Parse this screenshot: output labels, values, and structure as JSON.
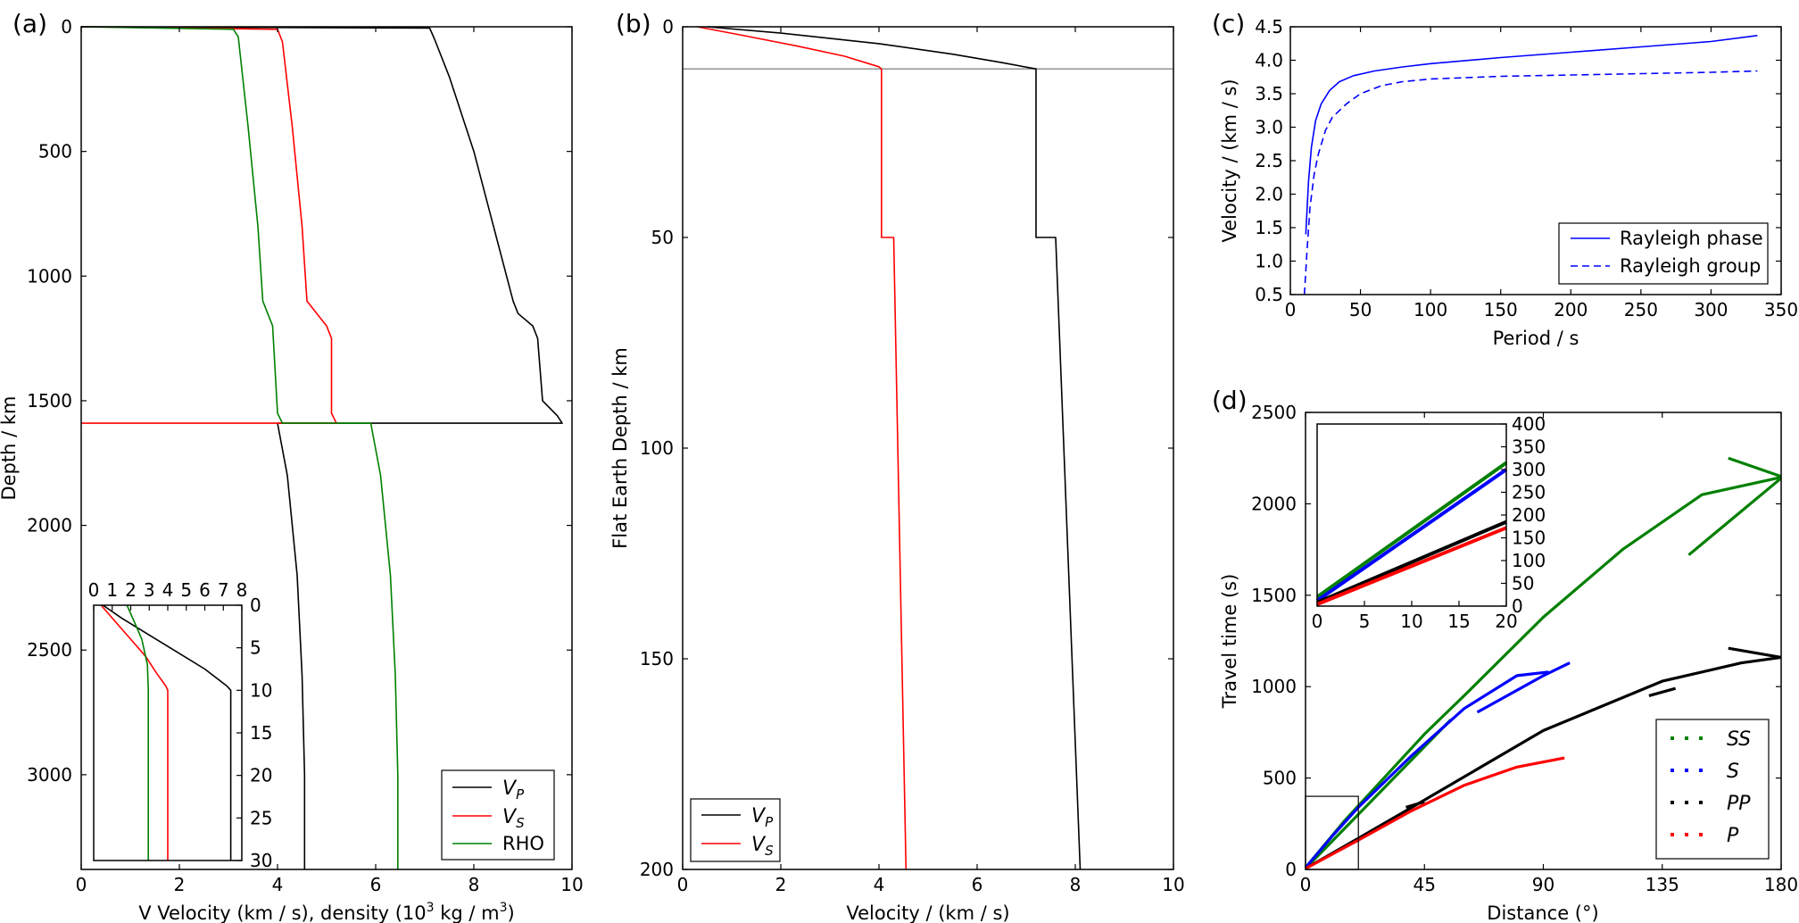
{
  "chart_data": [
    {
      "panel": "(a)",
      "type": "line",
      "xlabel_main": "V  Velocity (km / s),  density (10",
      "xlabel_sup": "3",
      "xlabel_end": " kg / m",
      "xlabel_sup2": "3",
      "xlabel_close": ")",
      "ylabel": "Depth / km",
      "xlim": [
        0,
        10
      ],
      "ylim": [
        3380,
        0
      ],
      "y_inverted": true,
      "xticks": [
        "0",
        "2",
        "4",
        "6",
        "8",
        "10"
      ],
      "yticks": [
        "0",
        "500",
        "1000",
        "1500",
        "2000",
        "2500",
        "3000"
      ],
      "legend_position": "lower-right",
      "series": [
        {
          "name_main": "V",
          "name_sub": "P",
          "color": "#000000",
          "points": [
            [
              0,
              0
            ],
            [
              7.1,
              5
            ],
            [
              7.2,
              50
            ],
            [
              7.5,
              200
            ],
            [
              8.0,
              500
            ],
            [
              8.4,
              800
            ],
            [
              8.8,
              1100
            ],
            [
              8.9,
              1150
            ],
            [
              9.2,
              1200
            ],
            [
              9.3,
              1250
            ],
            [
              9.4,
              1500
            ],
            [
              9.7,
              1560
            ],
            [
              9.8,
              1590
            ],
            [
              4.0,
              1590
            ],
            [
              4.2,
              1800
            ],
            [
              4.4,
              2200
            ],
            [
              4.5,
              2600
            ],
            [
              4.55,
              3000
            ],
            [
              4.55,
              3380
            ]
          ]
        },
        {
          "name_main": "V",
          "name_sub": "S",
          "color": "#ff0000",
          "points": [
            [
              0,
              0
            ],
            [
              4.0,
              10
            ],
            [
              4.1,
              60
            ],
            [
              4.3,
              400
            ],
            [
              4.5,
              800
            ],
            [
              4.6,
              1100
            ],
            [
              4.8,
              1150
            ],
            [
              5.0,
              1200
            ],
            [
              5.1,
              1250
            ],
            [
              5.1,
              1550
            ],
            [
              5.2,
              1590
            ],
            [
              0,
              1590
            ]
          ]
        },
        {
          "name": "RHO",
          "color": "#008000",
          "points": [
            [
              0,
              0
            ],
            [
              3.1,
              10
            ],
            [
              3.2,
              40
            ],
            [
              3.4,
              400
            ],
            [
              3.6,
              800
            ],
            [
              3.7,
              1100
            ],
            [
              3.8,
              1150
            ],
            [
              3.9,
              1200
            ],
            [
              4.0,
              1550
            ],
            [
              4.1,
              1590
            ],
            [
              5.9,
              1590
            ],
            [
              6.1,
              1800
            ],
            [
              6.3,
              2200
            ],
            [
              6.4,
              2600
            ],
            [
              6.45,
              3000
            ],
            [
              6.45,
              3380
            ]
          ]
        }
      ],
      "inset": {
        "xlim": [
          0,
          8
        ],
        "ylim": [
          30,
          0
        ],
        "xticks": [
          "0",
          "1",
          "2",
          "3",
          "4",
          "5",
          "6",
          "7",
          "8"
        ],
        "yticks": [
          "0",
          "5",
          "10",
          "15",
          "20",
          "25",
          "30"
        ],
        "series": [
          {
            "name": "VP",
            "color": "#000000",
            "points": [
              [
                0.5,
                0
              ],
              [
                1.5,
                1.5
              ],
              [
                3.0,
                3.5
              ],
              [
                4.5,
                5.5
              ],
              [
                6.0,
                7.5
              ],
              [
                7.2,
                9.5
              ],
              [
                7.4,
                10
              ],
              [
                7.4,
                30
              ]
            ]
          },
          {
            "name": "VS",
            "color": "#ff0000",
            "points": [
              [
                0.4,
                0
              ],
              [
                1.2,
                2
              ],
              [
                2.0,
                4
              ],
              [
                2.8,
                6
              ],
              [
                3.4,
                8
              ],
              [
                3.9,
                9.5
              ],
              [
                4.0,
                10
              ],
              [
                4.0,
                30
              ]
            ]
          },
          {
            "name": "RHO",
            "color": "#008000",
            "points": [
              [
                1.8,
                0
              ],
              [
                2.2,
                2
              ],
              [
                2.6,
                4
              ],
              [
                2.8,
                6
              ],
              [
                2.9,
                7
              ],
              [
                2.95,
                10
              ],
              [
                2.95,
                30
              ]
            ]
          }
        ]
      }
    },
    {
      "panel": "(b)",
      "type": "line",
      "xlabel": "Velocity / (km / s)",
      "ylabel": "Flat Earth Depth / km",
      "xlim": [
        0,
        10
      ],
      "ylim": [
        200,
        0
      ],
      "y_inverted": true,
      "xticks": [
        "0",
        "2",
        "4",
        "6",
        "8",
        "10"
      ],
      "yticks": [
        "0",
        "50",
        "100",
        "150",
        "200"
      ],
      "hline": 10,
      "legend_position": "lower-left",
      "series": [
        {
          "name_main": "V",
          "name_sub": "P",
          "color": "#000000",
          "points": [
            [
              0.5,
              0
            ],
            [
              2.0,
              1.5
            ],
            [
              4.0,
              4
            ],
            [
              5.5,
              6.5
            ],
            [
              6.5,
              8.5
            ],
            [
              7.2,
              10
            ],
            [
              7.2,
              50
            ],
            [
              7.6,
              50
            ],
            [
              8.1,
              200
            ]
          ]
        },
        {
          "name_main": "V",
          "name_sub": "S",
          "color": "#ff0000",
          "points": [
            [
              0.3,
              0
            ],
            [
              1.2,
              2
            ],
            [
              2.3,
              4.5
            ],
            [
              3.3,
              7
            ],
            [
              4.0,
              9.5
            ],
            [
              4.05,
              10
            ],
            [
              4.05,
              50
            ],
            [
              4.3,
              50
            ],
            [
              4.55,
              200
            ]
          ]
        }
      ]
    },
    {
      "panel": "(c)",
      "type": "line",
      "xlabel": "Period / s",
      "ylabel": "Velocity / (km / s)",
      "xlim": [
        0,
        350
      ],
      "ylim": [
        0.5,
        4.5
      ],
      "xticks": [
        "0",
        "50",
        "100",
        "150",
        "200",
        "250",
        "300",
        "350"
      ],
      "yticks": [
        "0.5",
        "1.0",
        "1.5",
        "2.0",
        "2.5",
        "3.0",
        "3.5",
        "4.0",
        "4.5"
      ],
      "legend_position": "lower-right",
      "series": [
        {
          "name": "Rayleigh phase",
          "color": "#0000ff",
          "dash": "solid",
          "points": [
            [
              11,
              1.4
            ],
            [
              13,
              2.2
            ],
            [
              15,
              2.7
            ],
            [
              18,
              3.1
            ],
            [
              22,
              3.35
            ],
            [
              28,
              3.55
            ],
            [
              35,
              3.68
            ],
            [
              45,
              3.77
            ],
            [
              60,
              3.84
            ],
            [
              80,
              3.9
            ],
            [
              100,
              3.95
            ],
            [
              150,
              4.04
            ],
            [
              200,
              4.12
            ],
            [
              250,
              4.2
            ],
            [
              300,
              4.28
            ],
            [
              333,
              4.37
            ]
          ]
        },
        {
          "name": "Rayleigh group",
          "color": "#0000ff",
          "dash": "dashed",
          "points": [
            [
              10,
              0.5
            ],
            [
              12,
              1.2
            ],
            [
              14,
              1.8
            ],
            [
              17,
              2.3
            ],
            [
              20,
              2.6
            ],
            [
              25,
              2.95
            ],
            [
              30,
              3.15
            ],
            [
              40,
              3.35
            ],
            [
              50,
              3.5
            ],
            [
              65,
              3.62
            ],
            [
              80,
              3.68
            ],
            [
              100,
              3.72
            ],
            [
              150,
              3.76
            ],
            [
              200,
              3.78
            ],
            [
              250,
              3.8
            ],
            [
              300,
              3.82
            ],
            [
              333,
              3.84
            ]
          ]
        }
      ]
    },
    {
      "panel": "(d)",
      "type": "line",
      "xlabel": "Distance (°)",
      "ylabel": "Travel time (s)",
      "xlim": [
        0,
        180
      ],
      "ylim": [
        0,
        2500
      ],
      "xticks": [
        "0",
        "45",
        "90",
        "135",
        "180"
      ],
      "yticks": [
        "0",
        "500",
        "1000",
        "1500",
        "2000",
        "2500"
      ],
      "legend_position": "lower-right",
      "inset_box": {
        "x": [
          0,
          20
        ],
        "y": [
          0,
          400
        ]
      },
      "series": [
        {
          "name": "SS",
          "color": "#008000",
          "segments": [
            [
              [
                0,
                10
              ],
              [
                15,
                270
              ],
              [
                45,
                740
              ],
              [
                60,
                950
              ],
              [
                90,
                1380
              ],
              [
                120,
                1750
              ],
              [
                150,
                2050
              ],
              [
                180,
                2145
              ]
            ],
            [
              [
                145,
                1720
              ],
              [
                180,
                2140
              ]
            ],
            [
              [
                160,
                2250
              ],
              [
                180,
                2150
              ]
            ],
            [
              [
                1,
                20
              ],
              [
                55,
                820
              ]
            ]
          ]
        },
        {
          "name": "S",
          "color": "#0000ff",
          "segments": [
            [
              [
                0,
                10
              ],
              [
                10,
                180
              ],
              [
                20,
                340
              ],
              [
                40,
                620
              ],
              [
                60,
                880
              ],
              [
                80,
                1060
              ],
              [
                92,
                1080
              ]
            ],
            [
              [
                65,
                860
              ],
              [
                90,
                1060
              ],
              [
                100,
                1130
              ]
            ]
          ]
        },
        {
          "name": "PP",
          "color": "#000000",
          "segments": [
            [
              [
                0,
                5
              ],
              [
                20,
                170
              ],
              [
                45,
                380
              ],
              [
                90,
                760
              ],
              [
                135,
                1030
              ],
              [
                165,
                1130
              ],
              [
                180,
                1160
              ]
            ],
            [
              [
                160,
                1210
              ],
              [
                180,
                1160
              ]
            ],
            [
              [
                38,
                340
              ],
              [
                45,
                370
              ]
            ],
            [
              [
                130,
                950
              ],
              [
                140,
                990
              ]
            ]
          ]
        },
        {
          "name": "P",
          "color": "#ff0000",
          "segments": [
            [
              [
                0,
                5
              ],
              [
                20,
                160
              ],
              [
                40,
                320
              ],
              [
                60,
                460
              ],
              [
                80,
                560
              ],
              [
                98,
                610
              ]
            ]
          ]
        }
      ],
      "inset": {
        "xlim": [
          0,
          20
        ],
        "ylim": [
          0,
          400
        ],
        "xticks": [
          "0",
          "5",
          "10",
          "15",
          "20"
        ],
        "yticks": [
          "0",
          "50",
          "100",
          "150",
          "200",
          "250",
          "300",
          "350",
          "400"
        ],
        "series": [
          {
            "name": "SS",
            "color": "#008000",
            "points": [
              [
                0,
                20
              ],
              [
                20,
                315
              ]
            ]
          },
          {
            "name": "S",
            "color": "#0000ff",
            "points": [
              [
                0,
                12
              ],
              [
                20,
                300
              ]
            ]
          },
          {
            "name": "PP",
            "color": "#000000",
            "points": [
              [
                0,
                8
              ],
              [
                20,
                185
              ]
            ]
          },
          {
            "name": "P",
            "color": "#ff0000",
            "points": [
              [
                0,
                4
              ],
              [
                20,
                172
              ]
            ]
          }
        ]
      }
    }
  ]
}
